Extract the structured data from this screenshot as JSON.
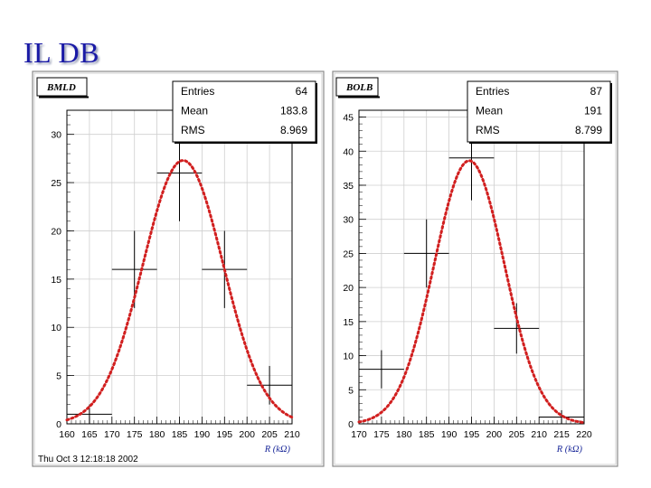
{
  "slide": {
    "title": "IL DB"
  },
  "footer": {
    "timestamp": "Thu Oct  3 12:18:18 2002"
  },
  "chart_data": [
    {
      "type": "histogram",
      "title": "BMLD",
      "xlabel": "R (kΩ)",
      "xlim": [
        160,
        210
      ],
      "ylim": [
        0,
        32.5
      ],
      "xticks": [
        160,
        165,
        170,
        175,
        180,
        185,
        190,
        195,
        200,
        205,
        210
      ],
      "yticks": [
        0,
        5,
        10,
        15,
        20,
        25,
        30
      ],
      "stats": [
        {
          "label": "Entries",
          "value": "64"
        },
        {
          "label": "Mean",
          "value": "183.8"
        },
        {
          "label": "RMS",
          "value": "8.969"
        }
      ],
      "bins": [
        {
          "x0": 160,
          "x1": 170,
          "y": 1,
          "err": 1
        },
        {
          "x0": 170,
          "x1": 180,
          "y": 16,
          "err": 4
        },
        {
          "x0": 180,
          "x1": 190,
          "y": 26,
          "err": 5
        },
        {
          "x0": 190,
          "x1": 200,
          "y": 16,
          "err": 4
        },
        {
          "x0": 200,
          "x1": 210,
          "y": 4,
          "err": 2
        }
      ],
      "fit": {
        "type": "gaussian",
        "amplitude": 27.3,
        "mean": 185.8,
        "sigma": 8.9,
        "color": "#d11f1f"
      }
    },
    {
      "type": "histogram",
      "title": "BOLB",
      "xlabel": "R (kΩ)",
      "xlim": [
        170,
        220
      ],
      "ylim": [
        0,
        46
      ],
      "xticks": [
        170,
        175,
        180,
        185,
        190,
        195,
        200,
        205,
        210,
        215,
        220
      ],
      "yticks": [
        0,
        5,
        10,
        15,
        20,
        25,
        30,
        35,
        40,
        45
      ],
      "stats": [
        {
          "label": "Entries",
          "value": "87"
        },
        {
          "label": "Mean",
          "value": "191"
        },
        {
          "label": "RMS",
          "value": "8.799"
        }
      ],
      "bins": [
        {
          "x0": 170,
          "x1": 180,
          "y": 8,
          "err": 2.8
        },
        {
          "x0": 180,
          "x1": 190,
          "y": 25,
          "err": 5
        },
        {
          "x0": 190,
          "x1": 200,
          "y": 39,
          "err": 6.2
        },
        {
          "x0": 200,
          "x1": 210,
          "y": 14,
          "err": 3.7
        },
        {
          "x0": 210,
          "x1": 220,
          "y": 1,
          "err": 1
        }
      ],
      "fit": {
        "type": "gaussian",
        "amplitude": 38.6,
        "mean": 194.5,
        "sigma": 7.8,
        "color": "#d11f1f"
      }
    }
  ]
}
